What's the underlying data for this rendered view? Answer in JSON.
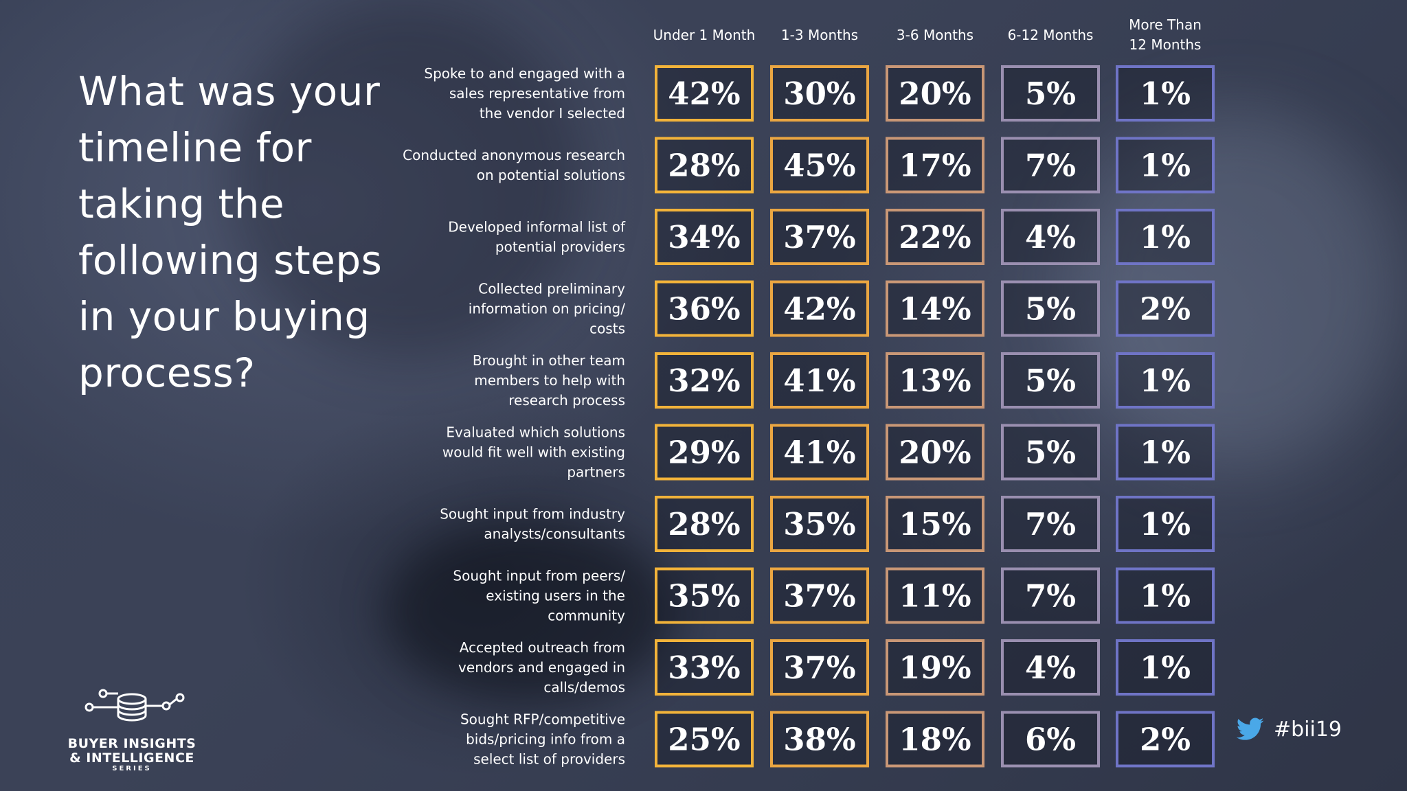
{
  "title": "What was your timeline for taking the following steps in your buying process?",
  "chart_data": {
    "type": "table",
    "columns": [
      "Under 1 Month",
      "1-3 Months",
      "3-6 Months",
      "6-12 Months",
      "More Than 12 Months"
    ],
    "rows": [
      {
        "label": "Spoke to and engaged with a sales representative from the vendor I selected",
        "values": [
          "42%",
          "30%",
          "20%",
          "5%",
          "1%"
        ]
      },
      {
        "label": "Conducted anonymous research on potential solutions",
        "values": [
          "28%",
          "45%",
          "17%",
          "7%",
          "1%"
        ]
      },
      {
        "label": "Developed informal list of potential providers",
        "values": [
          "34%",
          "37%",
          "22%",
          "4%",
          "1%"
        ]
      },
      {
        "label": "Collected preliminary information on pricing/ costs",
        "values": [
          "36%",
          "42%",
          "14%",
          "5%",
          "2%"
        ]
      },
      {
        "label": "Brought in other team members to help with research process",
        "values": [
          "32%",
          "41%",
          "13%",
          "5%",
          "1%"
        ]
      },
      {
        "label": "Evaluated which solutions would fit well with existing partners",
        "values": [
          "29%",
          "41%",
          "20%",
          "5%",
          "1%"
        ]
      },
      {
        "label": "Sought input from industry analysts/consultants",
        "values": [
          "28%",
          "35%",
          "15%",
          "7%",
          "1%"
        ]
      },
      {
        "label": "Sought input from peers/ existing users in the community",
        "values": [
          "35%",
          "37%",
          "11%",
          "7%",
          "1%"
        ]
      },
      {
        "label": "Accepted outreach from vendors and engaged in calls/demos",
        "values": [
          "33%",
          "37%",
          "19%",
          "4%",
          "1%"
        ]
      },
      {
        "label": "Sought RFP/competitive bids/pricing info from a select list of providers",
        "values": [
          "25%",
          "38%",
          "18%",
          "6%",
          "2%"
        ]
      }
    ],
    "column_border_colors": [
      "#f2b33a",
      "#eaa642",
      "#c99776",
      "#9a8fb0",
      "#6f74c6"
    ]
  },
  "logo": {
    "line1": "BUYER INSIGHTS",
    "line2": "& INTELLIGENCE",
    "line3": "SERIES"
  },
  "hashtag": "#bii19",
  "icons": {
    "logo": "network-database-icon",
    "social": "twitter-bird-icon"
  }
}
